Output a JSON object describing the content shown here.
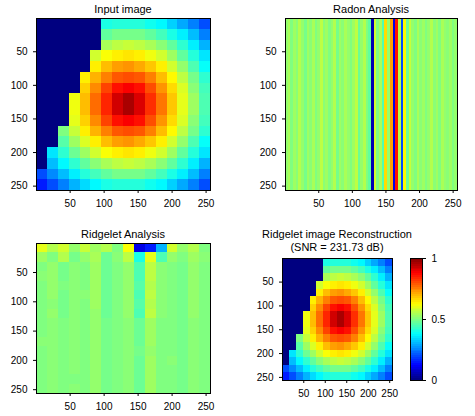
{
  "chart_data": [
    {
      "type": "heatmap",
      "title": "Input image",
      "xlim": [
        0.5,
        256.5
      ],
      "ylim": [
        0.5,
        256.5
      ],
      "xticks": [
        50,
        100,
        150,
        200,
        250
      ],
      "yticks": [
        50,
        100,
        150,
        200,
        250
      ],
      "color_range": [
        0,
        1
      ],
      "cells": [
        [
          0,
          0,
          0,
          0,
          0,
          0,
          0.4,
          0.41,
          0.41,
          0.41,
          0.39,
          0.37,
          0.33,
          0.29,
          0.25,
          0.2
        ],
        [
          0,
          0,
          0,
          0,
          0,
          0,
          0.47,
          0.49,
          0.49,
          0.49,
          0.47,
          0.44,
          0.4,
          0.36,
          0.31,
          0.25
        ],
        [
          0,
          0,
          0,
          0,
          0,
          0,
          0.54,
          0.56,
          0.57,
          0.56,
          0.54,
          0.51,
          0.47,
          0.42,
          0.36,
          0.3
        ],
        [
          0,
          0,
          0,
          0,
          0,
          0.58,
          0.62,
          0.64,
          0.65,
          0.64,
          0.61,
          0.58,
          0.53,
          0.47,
          0.41,
          0.35
        ],
        [
          0,
          0,
          0,
          0,
          0,
          0.64,
          0.69,
          0.72,
          0.73,
          0.71,
          0.68,
          0.64,
          0.58,
          0.52,
          0.45,
          0.38
        ],
        [
          0,
          0,
          0,
          0,
          0.64,
          0.7,
          0.75,
          0.79,
          0.8,
          0.79,
          0.75,
          0.69,
          0.63,
          0.56,
          0.49,
          0.42
        ],
        [
          0,
          0,
          0,
          0,
          0.67,
          0.74,
          0.81,
          0.86,
          0.88,
          0.86,
          0.8,
          0.73,
          0.66,
          0.59,
          0.51,
          0.44
        ],
        [
          0,
          0,
          0,
          0.61,
          0.69,
          0.77,
          0.84,
          0.92,
          0.96,
          0.91,
          0.83,
          0.76,
          0.68,
          0.6,
          0.53,
          0.45
        ],
        [
          0,
          0,
          0,
          0.61,
          0.69,
          0.77,
          0.84,
          0.92,
          0.96,
          0.91,
          0.83,
          0.76,
          0.68,
          0.6,
          0.53,
          0.45
        ],
        [
          0,
          0,
          0,
          0.6,
          0.67,
          0.74,
          0.81,
          0.86,
          0.88,
          0.86,
          0.8,
          0.73,
          0.66,
          0.59,
          0.51,
          0.44
        ],
        [
          0,
          0,
          0.5,
          0.57,
          0.64,
          0.7,
          0.75,
          0.79,
          0.8,
          0.79,
          0.75,
          0.69,
          0.63,
          0.56,
          0.49,
          0.42
        ],
        [
          0,
          0,
          0.46,
          0.53,
          0.59,
          0.64,
          0.69,
          0.72,
          0.73,
          0.71,
          0.68,
          0.64,
          0.58,
          0.52,
          0.45,
          0.38
        ],
        [
          0,
          0.35,
          0.42,
          0.48,
          0.53,
          0.58,
          0.62,
          0.64,
          0.65,
          0.64,
          0.61,
          0.58,
          0.53,
          0.47,
          0.41,
          0.35
        ],
        [
          0,
          0.31,
          0.37,
          0.42,
          0.47,
          0.51,
          0.54,
          0.56,
          0.57,
          0.56,
          0.54,
          0.51,
          0.47,
          0.42,
          0.36,
          0.3
        ],
        [
          0.2,
          0.26,
          0.31,
          0.36,
          0.41,
          0.44,
          0.47,
          0.49,
          0.49,
          0.49,
          0.47,
          0.44,
          0.4,
          0.36,
          0.31,
          0.25
        ],
        [
          0.15,
          0.2,
          0.25,
          0.3,
          0.34,
          0.37,
          0.4,
          0.41,
          0.41,
          0.41,
          0.39,
          0.37,
          0.33,
          0.29,
          0.25,
          0.2
        ]
      ]
    },
    {
      "type": "heatmap",
      "title": "Radon Analysis",
      "xlim": [
        0.5,
        256.5
      ],
      "ylim": [
        0.5,
        256.5
      ],
      "xticks": [
        50,
        100,
        150,
        200,
        250
      ],
      "yticks": [
        50,
        100,
        150,
        200,
        250
      ],
      "color_range": [
        0,
        1
      ],
      "cells": [
        [
          0.52,
          0.54,
          0.5,
          0.53,
          0.51,
          0.55,
          0.52,
          0.49,
          0.53,
          0.51,
          0.54,
          0.5,
          0.52,
          0.56,
          0.51,
          0.53,
          0.5,
          0.52,
          0.55,
          0.49,
          0.53,
          0.51,
          0.54,
          0.52,
          0.5,
          0.53,
          0.56,
          0.48,
          0.52,
          0.55,
          0.5,
          0.47,
          0.05,
          0.58,
          0.5,
          0.54,
          0.45,
          0.66,
          0.52,
          0.72,
          0.1,
          0.86,
          0.55,
          0.2,
          0.63,
          0.48,
          0.57,
          0.52,
          0.5,
          0.54,
          0.51,
          0.53,
          0.5,
          0.52,
          0.55,
          0.51,
          0.53,
          0.5,
          0.54,
          0.52,
          0.51,
          0.53,
          0.5,
          0.52
        ]
      ]
    },
    {
      "type": "heatmap",
      "title": "Ridgelet Analysis",
      "xlim": [
        0.5,
        256.5
      ],
      "ylim": [
        0.5,
        256.5
      ],
      "xticks": [
        50,
        100,
        150,
        200,
        250
      ],
      "yticks": [
        50,
        100,
        150,
        200,
        250
      ],
      "color_range": [
        0,
        1
      ],
      "cells": [
        [
          0.6,
          0.55,
          0.58,
          0.52,
          0.57,
          0.53,
          0.55,
          0.5,
          0.62,
          0.1,
          0.15,
          0.3,
          0.58,
          0.52,
          0.55,
          0.5
        ],
        [
          0.53,
          0.5,
          0.55,
          0.49,
          0.52,
          0.54,
          0.48,
          0.51,
          0.56,
          0.4,
          0.6,
          0.45,
          0.52,
          0.5,
          0.53,
          0.51
        ],
        [
          0.5,
          0.52,
          0.49,
          0.51,
          0.5,
          0.53,
          0.48,
          0.5,
          0.52,
          0.45,
          0.56,
          0.51,
          0.5,
          0.49,
          0.52,
          0.5
        ],
        [
          0.51,
          0.52,
          0.49,
          0.51,
          0.5,
          0.53,
          0.48,
          0.5,
          0.52,
          0.45,
          0.56,
          0.51,
          0.5,
          0.49,
          0.52,
          0.5
        ],
        [
          0.5,
          0.52,
          0.5,
          0.51,
          0.5,
          0.53,
          0.48,
          0.5,
          0.52,
          0.46,
          0.55,
          0.51,
          0.5,
          0.49,
          0.52,
          0.5
        ],
        [
          0.5,
          0.52,
          0.49,
          0.51,
          0.51,
          0.53,
          0.48,
          0.5,
          0.52,
          0.45,
          0.56,
          0.51,
          0.5,
          0.49,
          0.52,
          0.5
        ],
        [
          0.5,
          0.51,
          0.49,
          0.51,
          0.5,
          0.53,
          0.48,
          0.5,
          0.52,
          0.46,
          0.55,
          0.51,
          0.5,
          0.49,
          0.52,
          0.5
        ],
        [
          0.5,
          0.52,
          0.49,
          0.51,
          0.5,
          0.52,
          0.48,
          0.5,
          0.52,
          0.45,
          0.56,
          0.51,
          0.5,
          0.49,
          0.52,
          0.5
        ],
        [
          0.5,
          0.51,
          0.5,
          0.51,
          0.5,
          0.52,
          0.49,
          0.5,
          0.51,
          0.48,
          0.53,
          0.5,
          0.5,
          0.49,
          0.51,
          0.5
        ],
        [
          0.5,
          0.51,
          0.5,
          0.51,
          0.5,
          0.52,
          0.49,
          0.5,
          0.51,
          0.48,
          0.53,
          0.5,
          0.5,
          0.49,
          0.51,
          0.5
        ],
        [
          0.51,
          0.51,
          0.5,
          0.51,
          0.5,
          0.52,
          0.49,
          0.5,
          0.51,
          0.48,
          0.53,
          0.5,
          0.5,
          0.49,
          0.51,
          0.5
        ],
        [
          0.5,
          0.51,
          0.5,
          0.51,
          0.5,
          0.52,
          0.49,
          0.5,
          0.51,
          0.49,
          0.52,
          0.5,
          0.5,
          0.49,
          0.51,
          0.5
        ],
        [
          0.5,
          0.51,
          0.5,
          0.51,
          0.5,
          0.52,
          0.49,
          0.5,
          0.51,
          0.48,
          0.53,
          0.5,
          0.51,
          0.49,
          0.51,
          0.5
        ],
        [
          0.5,
          0.51,
          0.5,
          0.51,
          0.5,
          0.52,
          0.49,
          0.5,
          0.51,
          0.48,
          0.53,
          0.5,
          0.5,
          0.49,
          0.51,
          0.5
        ],
        [
          0.5,
          0.51,
          0.5,
          0.5,
          0.5,
          0.52,
          0.49,
          0.5,
          0.51,
          0.48,
          0.53,
          0.5,
          0.5,
          0.49,
          0.51,
          0.5
        ],
        [
          0.5,
          0.51,
          0.5,
          0.51,
          0.5,
          0.52,
          0.49,
          0.5,
          0.51,
          0.48,
          0.53,
          0.5,
          0.5,
          0.49,
          0.51,
          0.5
        ]
      ]
    },
    {
      "type": "heatmap",
      "title": "Ridgelet image Reconstruction",
      "subtitle": "(SNR = 231.73 dB)",
      "xlim": [
        0.5,
        256.5
      ],
      "ylim": [
        0.5,
        256.5
      ],
      "xticks": [
        50,
        100,
        150,
        200,
        250
      ],
      "yticks": [
        50,
        100,
        150,
        200,
        250
      ],
      "colorbar": {
        "range": [
          0,
          1
        ],
        "ticks": [
          0,
          0.5,
          1
        ]
      },
      "cells": [
        [
          0,
          0,
          0,
          0,
          0,
          0,
          0.4,
          0.41,
          0.41,
          0.41,
          0.39,
          0.37,
          0.33,
          0.29,
          0.25,
          0.2
        ],
        [
          0,
          0,
          0,
          0,
          0,
          0,
          0.47,
          0.49,
          0.49,
          0.49,
          0.47,
          0.44,
          0.4,
          0.36,
          0.31,
          0.25
        ],
        [
          0,
          0,
          0,
          0,
          0,
          0,
          0.54,
          0.56,
          0.57,
          0.56,
          0.54,
          0.51,
          0.47,
          0.42,
          0.36,
          0.3
        ],
        [
          0,
          0,
          0,
          0,
          0,
          0.58,
          0.62,
          0.64,
          0.65,
          0.64,
          0.61,
          0.58,
          0.53,
          0.47,
          0.41,
          0.35
        ],
        [
          0,
          0,
          0,
          0,
          0,
          0.64,
          0.69,
          0.72,
          0.73,
          0.71,
          0.68,
          0.64,
          0.58,
          0.52,
          0.45,
          0.38
        ],
        [
          0,
          0,
          0,
          0,
          0.64,
          0.7,
          0.75,
          0.79,
          0.8,
          0.79,
          0.75,
          0.69,
          0.63,
          0.56,
          0.49,
          0.42
        ],
        [
          0,
          0,
          0,
          0,
          0.67,
          0.74,
          0.81,
          0.86,
          0.88,
          0.86,
          0.8,
          0.73,
          0.66,
          0.59,
          0.51,
          0.44
        ],
        [
          0,
          0,
          0,
          0.61,
          0.69,
          0.77,
          0.84,
          0.92,
          0.96,
          0.91,
          0.83,
          0.76,
          0.68,
          0.6,
          0.53,
          0.45
        ],
        [
          0,
          0,
          0,
          0.61,
          0.69,
          0.77,
          0.84,
          0.92,
          0.96,
          0.91,
          0.83,
          0.76,
          0.68,
          0.6,
          0.53,
          0.45
        ],
        [
          0,
          0,
          0,
          0.6,
          0.67,
          0.74,
          0.81,
          0.86,
          0.88,
          0.86,
          0.8,
          0.73,
          0.66,
          0.59,
          0.51,
          0.44
        ],
        [
          0,
          0,
          0.5,
          0.57,
          0.64,
          0.7,
          0.75,
          0.79,
          0.8,
          0.79,
          0.75,
          0.69,
          0.63,
          0.56,
          0.49,
          0.42
        ],
        [
          0,
          0,
          0.46,
          0.53,
          0.59,
          0.64,
          0.69,
          0.72,
          0.73,
          0.71,
          0.68,
          0.64,
          0.58,
          0.52,
          0.45,
          0.38
        ],
        [
          0,
          0.35,
          0.42,
          0.48,
          0.53,
          0.58,
          0.62,
          0.64,
          0.65,
          0.64,
          0.61,
          0.58,
          0.53,
          0.47,
          0.41,
          0.35
        ],
        [
          0,
          0.31,
          0.37,
          0.42,
          0.47,
          0.51,
          0.54,
          0.56,
          0.57,
          0.56,
          0.54,
          0.51,
          0.47,
          0.42,
          0.36,
          0.3
        ],
        [
          0.2,
          0.26,
          0.31,
          0.36,
          0.41,
          0.44,
          0.47,
          0.49,
          0.49,
          0.49,
          0.47,
          0.44,
          0.4,
          0.36,
          0.31,
          0.25
        ],
        [
          0.15,
          0.2,
          0.25,
          0.3,
          0.34,
          0.37,
          0.4,
          0.41,
          0.41,
          0.41,
          0.39,
          0.37,
          0.33,
          0.29,
          0.25,
          0.2
        ]
      ]
    }
  ]
}
